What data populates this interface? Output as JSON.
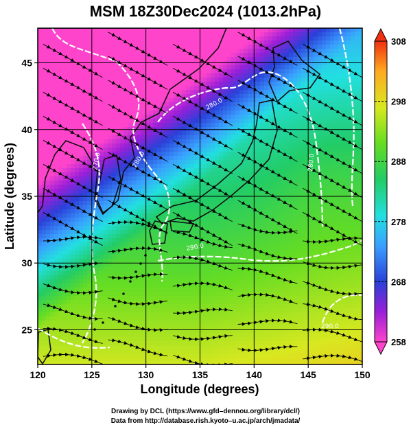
{
  "title": "MSM 18Z30Dec2024 (1013.2hPa)",
  "axes": {
    "xlabel": "Longitude (degrees)",
    "ylabel": "Latitude  (degrees)",
    "xlim": [
      120,
      150
    ],
    "ylim": [
      22.4,
      47.6
    ],
    "xticks": [
      "120",
      "125",
      "130",
      "135",
      "140",
      "145",
      "150"
    ],
    "xtick_values": [
      120,
      125,
      130,
      135,
      140,
      145,
      150
    ],
    "yticks": [
      "25",
      "30",
      "35",
      "40",
      "45"
    ],
    "ytick_values": [
      25,
      30,
      35,
      40,
      45
    ],
    "grid": true
  },
  "colorbar": {
    "range": [
      258,
      308
    ],
    "labels": [
      "308",
      "298",
      "288",
      "278",
      "268",
      "258"
    ],
    "label_values": [
      308,
      298,
      288,
      278,
      268,
      258
    ]
  },
  "contour_labels": [
    "280.0",
    "280.0",
    "270.0",
    "290.0",
    "280.0",
    "290.0"
  ],
  "credits": {
    "line1": "Drawing by DCL (https://www.gfd–dennou.org/library/dcl/)",
    "line2": "Data from http://database.rish.kyoto–u.ac.jp/arch/jmadata/"
  },
  "colors": {
    "land": "#101010",
    "contour": "#ffffff",
    "streamline": "#000000"
  }
}
